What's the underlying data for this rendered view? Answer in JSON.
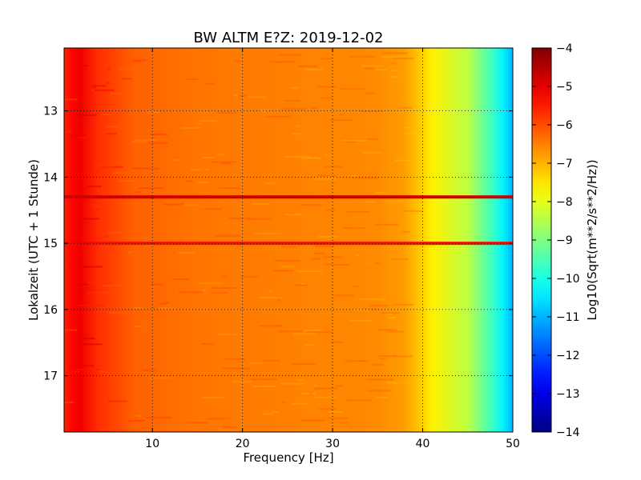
{
  "chart_data": {
    "type": "heatmap",
    "title": "BW ALTM E?Z: 2019-12-02",
    "xlabel": "Frequency [Hz]",
    "ylabel": "Lokalzeit (UTC + 1 Stunde)",
    "xlim": [
      0.2,
      50
    ],
    "ylim": [
      12.05,
      17.85
    ],
    "y_axis_inverted": true,
    "x_ticks": [
      10,
      20,
      30,
      40,
      50
    ],
    "y_ticks": [
      13,
      14,
      15,
      16,
      17
    ],
    "grid": true,
    "colorscale": "jet",
    "colorbar": {
      "label": "Log10(Sqrt(m**2/s**2/Hz))",
      "range": [
        -14,
        -4
      ],
      "ticks": [
        -4,
        -5,
        -6,
        -7,
        -8,
        -9,
        -10,
        -11,
        -12,
        -13,
        -14
      ]
    },
    "background_profile": {
      "frequency_hz": [
        0.2,
        1,
        2,
        4,
        8,
        15,
        25,
        35,
        38,
        40,
        41,
        45,
        48,
        49,
        50
      ],
      "log10_amplitude": [
        -5.6,
        -5.3,
        -5.1,
        -5.7,
        -6.2,
        -6.4,
        -6.5,
        -6.6,
        -6.8,
        -7.3,
        -7.6,
        -8.4,
        -9.8,
        -10.4,
        -11.0
      ]
    },
    "time_bands": [
      {
        "time_h": 14.3,
        "log10_amplitude": -4.8
      },
      {
        "time_h": 15.0,
        "log10_amplitude": -5.4
      }
    ]
  }
}
